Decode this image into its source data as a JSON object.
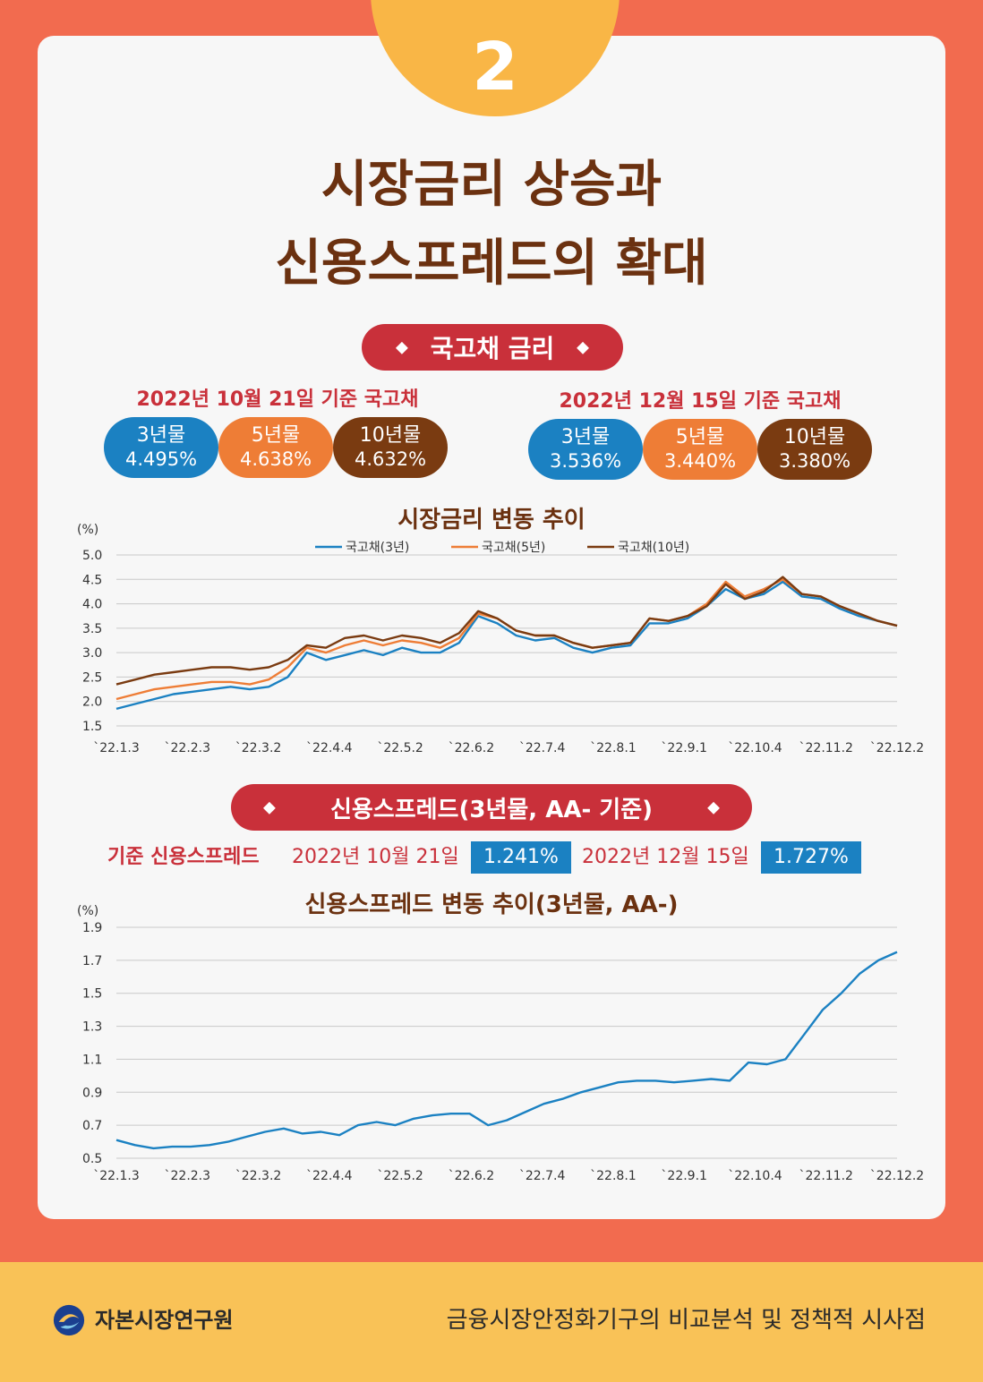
{
  "badge": {
    "number": "2"
  },
  "title": {
    "line1": "시장금리 상승과",
    "line2": "신용스프레드의 확대"
  },
  "section1": {
    "pill": "국고채 금리",
    "left": {
      "heading": "2022년 10월 21일 기준 국고채",
      "bonds": [
        {
          "name": "3년물",
          "value": "4.495%"
        },
        {
          "name": "5년물",
          "value": "4.638%"
        },
        {
          "name": "10년물",
          "value": "4.632%"
        }
      ]
    },
    "right": {
      "heading": "2022년 12월 15일 기준 국고채",
      "bonds": [
        {
          "name": "3년물",
          "value": "3.536%"
        },
        {
          "name": "5년물",
          "value": "3.440%"
        },
        {
          "name": "10년물",
          "value": "3.380%"
        }
      ]
    }
  },
  "section2": {
    "pill": "신용스프레드(3년물, AA- 기준)",
    "label": "기준 신용스프레드",
    "date1": "2022년 10월 21일",
    "value1": "1.241%",
    "date2": "2022년 12월 15일",
    "value2": "1.727%"
  },
  "footer": {
    "org": "자본시장연구원",
    "report": "금융시장안정화기구의 비교분석 및 정책적 시사점"
  },
  "colors": {
    "orange": "#f26b4f",
    "yellow": "#f9b646",
    "red": "#c9303a",
    "blue": "#1b81c2",
    "lightorange": "#ee7d36",
    "brown": "#7a3b11",
    "title": "#6b3110"
  },
  "chart_data": [
    {
      "type": "line",
      "title": "시장금리 변동 추이",
      "ylabel": "(%)",
      "ylim": [
        1.5,
        5.0
      ],
      "yticks": [
        "1.5",
        "2.0",
        "2.5",
        "3.0",
        "3.5",
        "4.0",
        "4.5",
        "5.0"
      ],
      "xticks": [
        "`22.1.3",
        "`22.2.3",
        "`22.3.2",
        "`22.4.4",
        "`22.5.2",
        "`22.6.2",
        "`22.7.4",
        "`22.8.1",
        "`22.9.1",
        "`22.10.4",
        "`22.11.2",
        "`22.12.2"
      ],
      "legend_position": "top-center",
      "series": [
        {
          "name": "국고채(3년)",
          "color": "#1b81c2",
          "values": [
            1.85,
            1.95,
            2.05,
            2.15,
            2.2,
            2.25,
            2.3,
            2.25,
            2.3,
            2.5,
            3.0,
            2.85,
            2.95,
            3.05,
            2.95,
            3.1,
            3.0,
            3.0,
            3.2,
            3.75,
            3.6,
            3.35,
            3.25,
            3.3,
            3.1,
            3.0,
            3.1,
            3.15,
            3.6,
            3.6,
            3.7,
            3.95,
            4.3,
            4.1,
            4.2,
            4.45,
            4.15,
            4.1,
            3.9,
            3.75,
            3.65,
            3.55
          ]
        },
        {
          "name": "국고채(5년)",
          "color": "#ee7d36",
          "values": [
            2.05,
            2.15,
            2.25,
            2.3,
            2.35,
            2.4,
            2.4,
            2.35,
            2.45,
            2.7,
            3.1,
            3.0,
            3.15,
            3.25,
            3.15,
            3.25,
            3.2,
            3.1,
            3.3,
            3.8,
            3.7,
            3.45,
            3.35,
            3.35,
            3.2,
            3.1,
            3.15,
            3.2,
            3.7,
            3.65,
            3.75,
            4.0,
            4.45,
            4.15,
            4.3,
            4.5,
            4.2,
            4.15,
            3.95,
            3.8,
            3.65,
            3.55
          ]
        },
        {
          "name": "국고채(10년)",
          "color": "#7a3b11",
          "values": [
            2.35,
            2.45,
            2.55,
            2.6,
            2.65,
            2.7,
            2.7,
            2.65,
            2.7,
            2.85,
            3.15,
            3.1,
            3.3,
            3.35,
            3.25,
            3.35,
            3.3,
            3.2,
            3.4,
            3.85,
            3.7,
            3.45,
            3.35,
            3.35,
            3.2,
            3.1,
            3.15,
            3.2,
            3.7,
            3.65,
            3.75,
            3.95,
            4.4,
            4.1,
            4.25,
            4.55,
            4.2,
            4.15,
            3.95,
            3.8,
            3.65,
            3.55
          ]
        }
      ]
    },
    {
      "type": "line",
      "title": "신용스프레드 변동 추이(3년물, AA-)",
      "ylabel": "(%)",
      "ylim": [
        0.5,
        1.9
      ],
      "yticks": [
        "0.5",
        "0.7",
        "0.9",
        "1.1",
        "1.3",
        "1.5",
        "1.7",
        "1.9"
      ],
      "xticks": [
        "`22.1.3",
        "`22.2.3",
        "`22.3.2",
        "`22.4.4",
        "`22.5.2",
        "`22.6.2",
        "`22.7.4",
        "`22.8.1",
        "`22.9.1",
        "`22.10.4",
        "`22.11.2",
        "`22.12.2"
      ],
      "series": [
        {
          "name": "신용스프레드",
          "color": "#1b81c2",
          "values": [
            0.61,
            0.58,
            0.56,
            0.57,
            0.57,
            0.58,
            0.6,
            0.63,
            0.66,
            0.68,
            0.65,
            0.66,
            0.64,
            0.7,
            0.72,
            0.7,
            0.74,
            0.76,
            0.77,
            0.77,
            0.7,
            0.73,
            0.78,
            0.83,
            0.86,
            0.9,
            0.93,
            0.96,
            0.97,
            0.97,
            0.96,
            0.97,
            0.98,
            0.97,
            1.08,
            1.07,
            1.1,
            1.25,
            1.4,
            1.5,
            1.62,
            1.7,
            1.75
          ]
        }
      ]
    }
  ]
}
